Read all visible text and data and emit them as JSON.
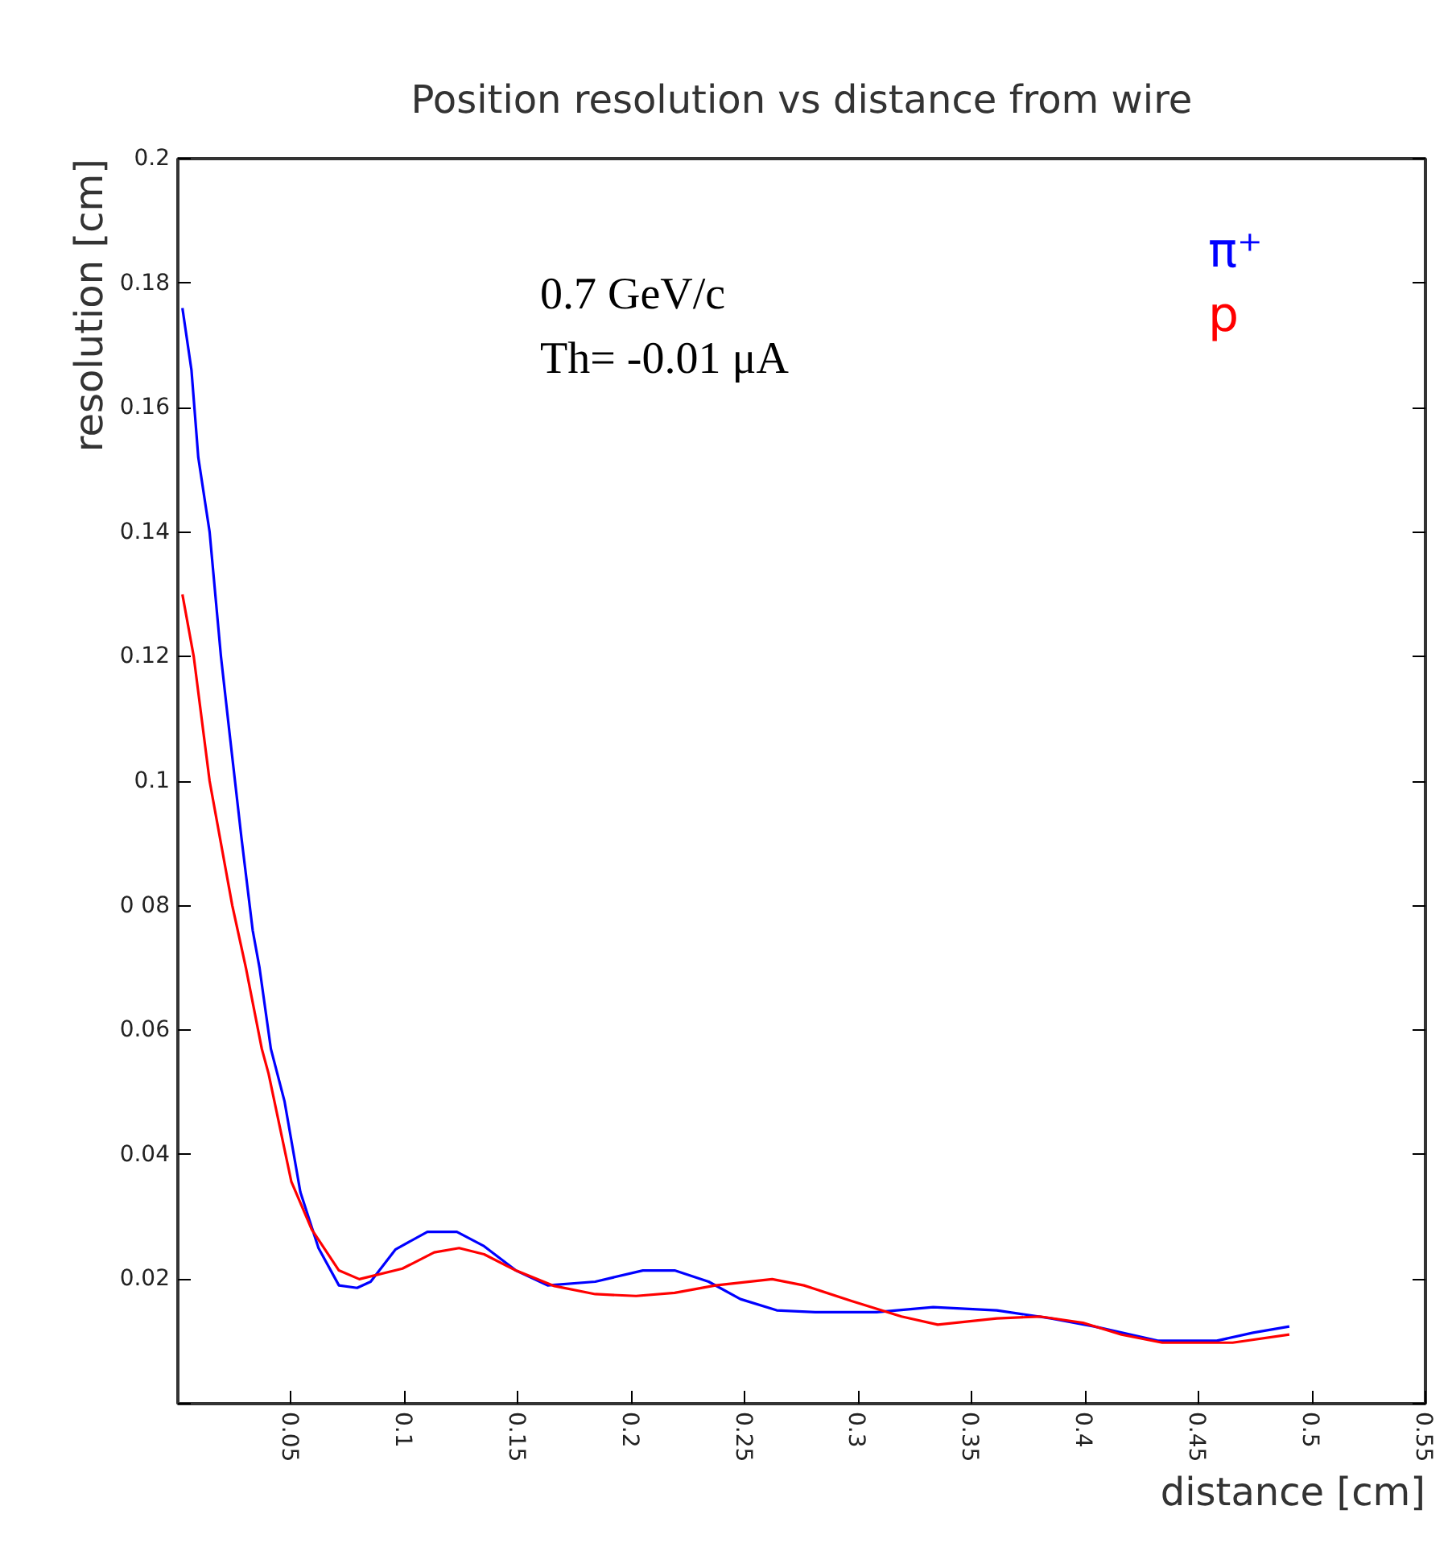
{
  "chart_data": {
    "type": "line",
    "title": "Position resolution vs distance from wire",
    "xlabel": "distance [cm]",
    "ylabel": "resolution [cm]",
    "annotations": [
      "0.7 GeV/c",
      "Th= -0.01 μA"
    ],
    "xlim": [
      0,
      0.55
    ],
    "ylim": [
      0,
      0.2
    ],
    "xticks": [
      {
        "value": 0,
        "label": null
      },
      0.05,
      0.1,
      0.15,
      0.2,
      0.25,
      0.3,
      0.35,
      0.4,
      0.45,
      0.5,
      0.55
    ],
    "yticks": [
      {
        "value": 0,
        "label": null
      },
      0.02,
      0.04,
      0.06,
      {
        "value": 0.08,
        "label": "0 08"
      },
      0.1,
      0.12,
      0.14,
      0.16,
      0.18,
      0.2
    ],
    "grid": false,
    "legend": "top right",
    "marker": "none",
    "line_style": "solid",
    "series": [
      {
        "name": "π⁺",
        "color": "#0000ff",
        "x": [
          0.002,
          0.006,
          0.009,
          0.014,
          0.019,
          0.023,
          0.028,
          0.033,
          0.036,
          0.041,
          0.047,
          0.054,
          0.062,
          0.071,
          0.079,
          0.085,
          0.096,
          0.11,
          0.123,
          0.135,
          0.149,
          0.163,
          0.184,
          0.205,
          0.219,
          0.234,
          0.248,
          0.264,
          0.281,
          0.308,
          0.333,
          0.361,
          0.385,
          0.404,
          0.432,
          0.458,
          0.474,
          0.49
        ],
        "values": [
          0.176,
          0.166,
          0.152,
          0.14,
          0.12,
          0.107,
          0.091,
          0.076,
          0.07,
          0.057,
          0.0486,
          0.034,
          0.025,
          0.019,
          0.0186,
          0.0196,
          0.0248,
          0.0276,
          0.0276,
          0.0253,
          0.0214,
          0.019,
          0.0196,
          0.0214,
          0.0214,
          0.0196,
          0.0168,
          0.015,
          0.0147,
          0.0147,
          0.0155,
          0.015,
          0.0137,
          0.0124,
          0.0101,
          0.0101,
          0.0114,
          0.0124
        ]
      },
      {
        "name": "p",
        "color": "#ff0000",
        "x": [
          0.002,
          0.007,
          0.014,
          0.024,
          0.03,
          0.037,
          0.04,
          0.05,
          0.059,
          0.071,
          0.08,
          0.099,
          0.113,
          0.124,
          0.135,
          0.149,
          0.166,
          0.184,
          0.202,
          0.219,
          0.237,
          0.262,
          0.276,
          0.297,
          0.319,
          0.335,
          0.361,
          0.38,
          0.399,
          0.416,
          0.434,
          0.465,
          0.49
        ],
        "values": [
          0.13,
          0.12,
          0.1,
          0.08,
          0.07,
          0.057,
          0.053,
          0.0357,
          0.028,
          0.0214,
          0.02,
          0.0217,
          0.0243,
          0.025,
          0.024,
          0.0214,
          0.0189,
          0.0176,
          0.0173,
          0.0178,
          0.019,
          0.02,
          0.019,
          0.0165,
          0.014,
          0.0127,
          0.0137,
          0.014,
          0.013,
          0.0111,
          0.0098,
          0.0098,
          0.0111
        ]
      }
    ]
  }
}
